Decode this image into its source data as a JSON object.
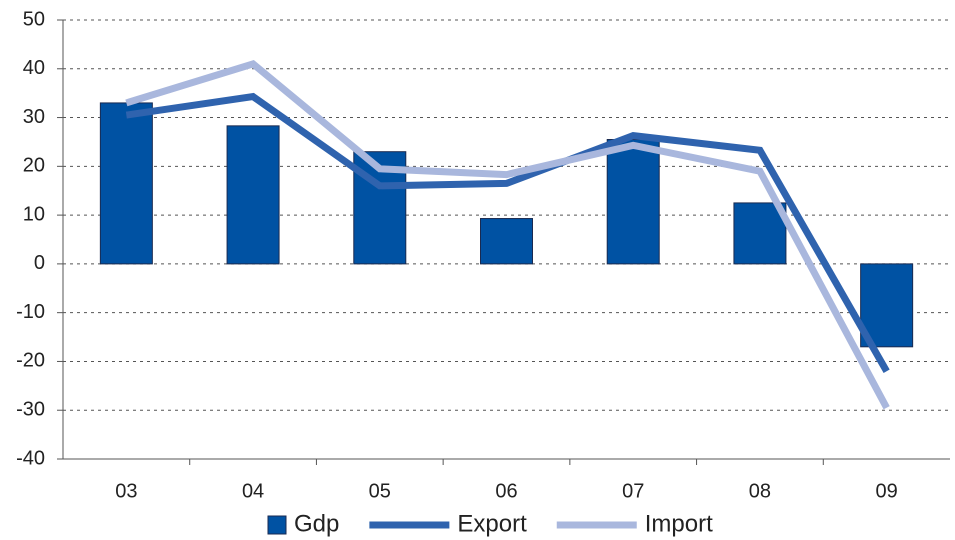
{
  "chart_data": {
    "type": "bar_line",
    "categories": [
      "03",
      "04",
      "05",
      "06",
      "07",
      "08",
      "09"
    ],
    "series": [
      {
        "name": "Gdp",
        "type": "bar",
        "color": "#0052a3",
        "values": [
          33,
          28.3,
          23,
          9.3,
          25.5,
          12.5,
          -17
        ]
      },
      {
        "name": "Export",
        "type": "line",
        "color": "#2f63ae",
        "values": [
          30.5,
          34.3,
          16,
          16.5,
          26.3,
          23.3,
          -22
        ]
      },
      {
        "name": "Import",
        "type": "line",
        "color": "#a9b7dd",
        "values": [
          33,
          41,
          19.5,
          18.3,
          24.3,
          19,
          -29.5
        ]
      }
    ],
    "ylim": [
      -40,
      50
    ],
    "yticks": [
      -40,
      -30,
      -20,
      -10,
      0,
      10,
      20,
      30,
      40,
      50
    ],
    "grid": true,
    "legend": "bottom"
  }
}
